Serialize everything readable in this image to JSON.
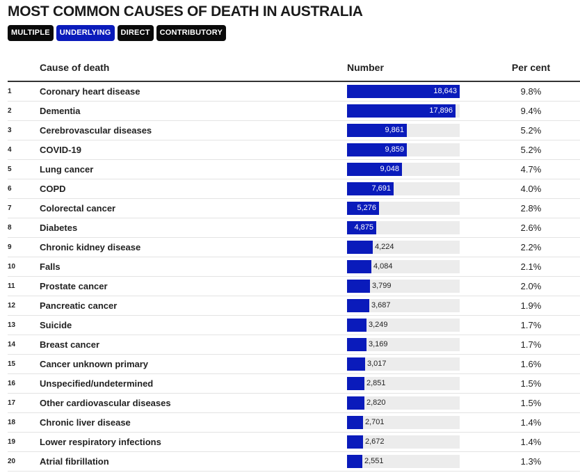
{
  "title": "MOST COMMON CAUSES OF DEATH IN AUSTRALIA",
  "tabs": [
    {
      "label": "MULTIPLE",
      "active": false
    },
    {
      "label": "UNDERLYING",
      "active": true
    },
    {
      "label": "DIRECT",
      "active": false
    },
    {
      "label": "CONTRIBUTORY",
      "active": false
    }
  ],
  "columns": {
    "cause": "Cause of death",
    "number": "Number",
    "percent": "Per cent"
  },
  "colors": {
    "bar": "#0a1bbb",
    "track": "#ececec",
    "active_tab": "#0a1bbb",
    "tab": "#0a0a0a"
  },
  "chart_data": {
    "type": "bar",
    "orientation": "horizontal",
    "title": "MOST COMMON CAUSES OF DEATH IN AUSTRALIA",
    "xlim": [
      0,
      18643
    ],
    "rows": [
      {
        "rank": "1",
        "cause": "Coronary heart disease",
        "value": 18643,
        "label": "18,643",
        "percent": "9.8%"
      },
      {
        "rank": "2",
        "cause": "Dementia",
        "value": 17896,
        "label": "17,896",
        "percent": "9.4%"
      },
      {
        "rank": "3",
        "cause": "Cerebrovascular diseases",
        "value": 9861,
        "label": "9,861",
        "percent": "5.2%"
      },
      {
        "rank": "4",
        "cause": "COVID-19",
        "value": 9859,
        "label": "9,859",
        "percent": "5.2%"
      },
      {
        "rank": "5",
        "cause": "Lung cancer",
        "value": 9048,
        "label": "9,048",
        "percent": "4.7%"
      },
      {
        "rank": "6",
        "cause": "COPD",
        "value": 7691,
        "label": "7,691",
        "percent": "4.0%"
      },
      {
        "rank": "7",
        "cause": "Colorectal cancer",
        "value": 5276,
        "label": "5,276",
        "percent": "2.8%"
      },
      {
        "rank": "8",
        "cause": "Diabetes",
        "value": 4875,
        "label": "4,875",
        "percent": "2.6%"
      },
      {
        "rank": "9",
        "cause": "Chronic kidney disease",
        "value": 4224,
        "label": "4,224",
        "percent": "2.2%"
      },
      {
        "rank": "10",
        "cause": "Falls",
        "value": 4084,
        "label": "4,084",
        "percent": "2.1%"
      },
      {
        "rank": "11",
        "cause": "Prostate cancer",
        "value": 3799,
        "label": "3,799",
        "percent": "2.0%"
      },
      {
        "rank": "12",
        "cause": "Pancreatic cancer",
        "value": 3687,
        "label": "3,687",
        "percent": "1.9%"
      },
      {
        "rank": "13",
        "cause": "Suicide",
        "value": 3249,
        "label": "3,249",
        "percent": "1.7%"
      },
      {
        "rank": "14",
        "cause": "Breast cancer",
        "value": 3169,
        "label": "3,169",
        "percent": "1.7%"
      },
      {
        "rank": "15",
        "cause": "Cancer unknown primary",
        "value": 3017,
        "label": "3,017",
        "percent": "1.6%"
      },
      {
        "rank": "16",
        "cause": "Unspecified/undetermined",
        "value": 2851,
        "label": "2,851",
        "percent": "1.5%"
      },
      {
        "rank": "17",
        "cause": "Other cardiovascular diseases",
        "value": 2820,
        "label": "2,820",
        "percent": "1.5%"
      },
      {
        "rank": "18",
        "cause": "Chronic liver disease",
        "value": 2701,
        "label": "2,701",
        "percent": "1.4%"
      },
      {
        "rank": "19",
        "cause": "Lower respiratory infections",
        "value": 2672,
        "label": "2,672",
        "percent": "1.4%"
      },
      {
        "rank": "20",
        "cause": "Atrial fibrillation",
        "value": 2551,
        "label": "2,551",
        "percent": "1.3%"
      }
    ]
  }
}
